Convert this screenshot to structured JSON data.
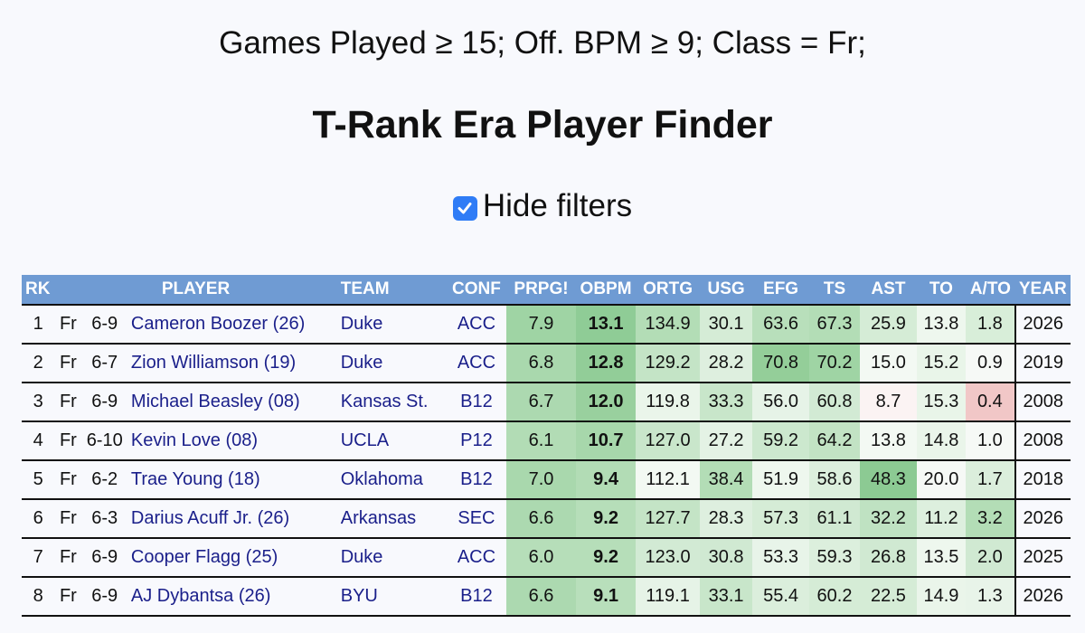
{
  "filters_text": "Games Played ≥ 15; Off. BPM ≥ 9; Class = Fr;",
  "title": "T-Rank Era Player Finder",
  "hide_filters": {
    "label": "Hide filters",
    "checked": true
  },
  "table": {
    "headers": [
      "RK",
      "PLAYER",
      "TEAM",
      "CONF",
      "PRPG!",
      "OBPM",
      "ORTG",
      "USG",
      "EFG",
      "TS",
      "AST",
      "TO",
      "A/TO",
      "YEAR"
    ],
    "rows": [
      {
        "rk": "1",
        "cls": "Fr",
        "ht": "6-9",
        "name": "Cameron Boozer",
        "yr": "(26)",
        "team": "Duke",
        "conf": "ACC",
        "prpg": "7.9",
        "obpm": "13.1",
        "ortg": "134.9",
        "usg": "30.1",
        "efg": "63.6",
        "ts": "67.3",
        "ast": "25.9",
        "to": "13.8",
        "ato": "1.8",
        "year": "2026"
      },
      {
        "rk": "2",
        "cls": "Fr",
        "ht": "6-7",
        "name": "Zion Williamson",
        "yr": "(19)",
        "team": "Duke",
        "conf": "ACC",
        "prpg": "6.8",
        "obpm": "12.8",
        "ortg": "129.2",
        "usg": "28.2",
        "efg": "70.8",
        "ts": "70.2",
        "ast": "15.0",
        "to": "15.2",
        "ato": "0.9",
        "year": "2019"
      },
      {
        "rk": "3",
        "cls": "Fr",
        "ht": "6-9",
        "name": "Michael Beasley",
        "yr": "(08)",
        "team": "Kansas St.",
        "conf": "B12",
        "prpg": "6.7",
        "obpm": "12.0",
        "ortg": "119.8",
        "usg": "33.3",
        "efg": "56.0",
        "ts": "60.8",
        "ast": "8.7",
        "to": "15.3",
        "ato": "0.4",
        "year": "2008"
      },
      {
        "rk": "4",
        "cls": "Fr",
        "ht": "6-10",
        "name": "Kevin Love",
        "yr": "(08)",
        "team": "UCLA",
        "conf": "P12",
        "prpg": "6.1",
        "obpm": "10.7",
        "ortg": "127.0",
        "usg": "27.2",
        "efg": "59.2",
        "ts": "64.2",
        "ast": "13.8",
        "to": "14.8",
        "ato": "1.0",
        "year": "2008"
      },
      {
        "rk": "5",
        "cls": "Fr",
        "ht": "6-2",
        "name": "Trae Young",
        "yr": "(18)",
        "team": "Oklahoma",
        "conf": "B12",
        "prpg": "7.0",
        "obpm": "9.4",
        "ortg": "112.1",
        "usg": "38.4",
        "efg": "51.9",
        "ts": "58.6",
        "ast": "48.3",
        "to": "20.0",
        "ato": "1.7",
        "year": "2018"
      },
      {
        "rk": "6",
        "cls": "Fr",
        "ht": "6-3",
        "name": "Darius Acuff Jr.",
        "yr": "(26)",
        "team": "Arkansas",
        "conf": "SEC",
        "prpg": "6.6",
        "obpm": "9.2",
        "ortg": "127.7",
        "usg": "28.3",
        "efg": "57.3",
        "ts": "61.1",
        "ast": "32.2",
        "to": "11.2",
        "ato": "3.2",
        "year": "2026"
      },
      {
        "rk": "7",
        "cls": "Fr",
        "ht": "6-9",
        "name": "Cooper Flagg",
        "yr": "(25)",
        "team": "Duke",
        "conf": "ACC",
        "prpg": "6.0",
        "obpm": "9.2",
        "ortg": "123.0",
        "usg": "30.8",
        "efg": "53.3",
        "ts": "59.3",
        "ast": "26.8",
        "to": "13.5",
        "ato": "2.0",
        "year": "2025"
      },
      {
        "rk": "8",
        "cls": "Fr",
        "ht": "6-9",
        "name": "AJ Dybantsa",
        "yr": "(26)",
        "team": "BYU",
        "conf": "B12",
        "prpg": "6.6",
        "obpm": "9.1",
        "ortg": "119.1",
        "usg": "33.1",
        "efg": "55.4",
        "ts": "60.2",
        "ast": "22.5",
        "to": "14.9",
        "ato": "1.3",
        "year": "2026"
      }
    ],
    "cell_colors": [
      {
        "prpg": "#9fd4a4",
        "obpm": "#8fcc96",
        "ortg": "#b3ddb6",
        "usg": "#d5ecd6",
        "efg": "#b8dfbb",
        "ts": "#b3ddb6",
        "ast": "#d5ecd6",
        "to": "#eef7ee",
        "ato": "#d8eed9"
      },
      {
        "prpg": "#a9d8ad",
        "obpm": "#92cd98",
        "ortg": "#c4e4c6",
        "usg": "#deefdf",
        "efg": "#94ce99",
        "ts": "#9fd4a4",
        "ast": "#f3f9f3",
        "to": "#e9f5e9",
        "ato": "#f6f9f6"
      },
      {
        "prpg": "#acd9b0",
        "obpm": "#99d09e",
        "ortg": "#eaf5ea",
        "usg": "#c8e6ca",
        "efg": "#e6f3e7",
        "ts": "#d2ead4",
        "ast": "#fbf3f3",
        "to": "#e9f5e9",
        "ato": "#f1c7c7"
      },
      {
        "prpg": "#b2dcb5",
        "obpm": "#a7d7ab",
        "ortg": "#c9e6cb",
        "usg": "#e4f2e5",
        "efg": "#cce8ce",
        "ts": "#c2e3c4",
        "ast": "#f3f9f3",
        "to": "#eaf5ea",
        "ato": "#f6f9f6"
      },
      {
        "prpg": "#a9d8ad",
        "obpm": "#b2dcb5",
        "ortg": "#f3f9f3",
        "usg": "#b3ddb6",
        "efg": "#eef7ee",
        "ts": "#dcefdd",
        "ast": "#8cca93",
        "to": "#f6f9f6",
        "ato": "#dbeedc"
      },
      {
        "prpg": "#acd9b0",
        "obpm": "#b6deb9",
        "ortg": "#c4e4c6",
        "usg": "#deefdf",
        "efg": "#d5ecd6",
        "ts": "#d0e9d2",
        "ast": "#bfe2c2",
        "to": "#ddefde",
        "ato": "#b3ddb6"
      },
      {
        "prpg": "#b6deb9",
        "obpm": "#b6deb9",
        "ortg": "#d2ead4",
        "usg": "#d0e9d2",
        "efg": "#e8f4e9",
        "ts": "#dcefdd",
        "ast": "#d0e9d2",
        "to": "#eef7ee",
        "ato": "#d0e9d2"
      },
      {
        "prpg": "#acd9b0",
        "obpm": "#b8dfbb",
        "ortg": "#e6f3e7",
        "usg": "#c8e6ca",
        "efg": "#dbeedc",
        "ts": "#d5ecd6",
        "ast": "#d5ecd6",
        "to": "#eaf5ea",
        "ato": "#e8f4e9"
      }
    ]
  }
}
